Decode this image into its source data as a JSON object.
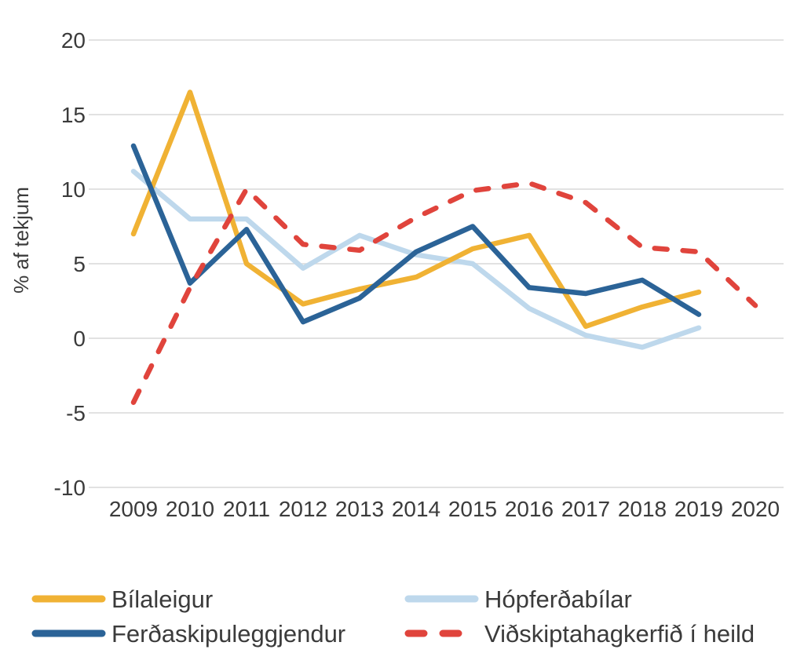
{
  "chart_data": {
    "type": "line",
    "title": "",
    "xlabel": "",
    "ylabel": "% af tekjum",
    "x_categories": [
      "2009",
      "2010",
      "2011",
      "2012",
      "2013",
      "2014",
      "2015",
      "2016",
      "2017",
      "2018",
      "2019",
      "2020"
    ],
    "ylim": [
      -10,
      20
    ],
    "yticks": [
      20,
      15,
      10,
      5,
      0,
      -5,
      -10
    ],
    "grid": "horizontal",
    "gridline_color": "#D9D9D9",
    "text_color": "#3B3B3B",
    "legend_position": "bottom",
    "series": [
      {
        "name": "Bílaleigur",
        "color": "#F0B234",
        "style": "solid",
        "values": [
          7.0,
          16.5,
          5.0,
          2.3,
          3.3,
          4.1,
          6.0,
          6.9,
          0.8,
          2.1,
          3.1
        ]
      },
      {
        "name": "Ferðaskipuleggjendur",
        "color": "#2B6397",
        "style": "solid",
        "values": [
          12.9,
          3.7,
          7.3,
          1.1,
          2.7,
          5.8,
          7.5,
          3.4,
          3.0,
          3.9,
          1.6
        ]
      },
      {
        "name": "Hópferðabílar",
        "color": "#BED8EC",
        "style": "solid",
        "values": [
          11.2,
          8.0,
          8.0,
          4.7,
          6.9,
          5.6,
          5.0,
          2.0,
          0.2,
          -0.6,
          0.7
        ]
      },
      {
        "name": "Viðskiptahagkerfið í heild",
        "color": "#E0443C",
        "style": "dashed",
        "values": [
          -4.3,
          3.4,
          10.0,
          6.3,
          5.9,
          8.1,
          9.9,
          10.4,
          9.1,
          6.1,
          5.8,
          2.2
        ]
      }
    ]
  }
}
